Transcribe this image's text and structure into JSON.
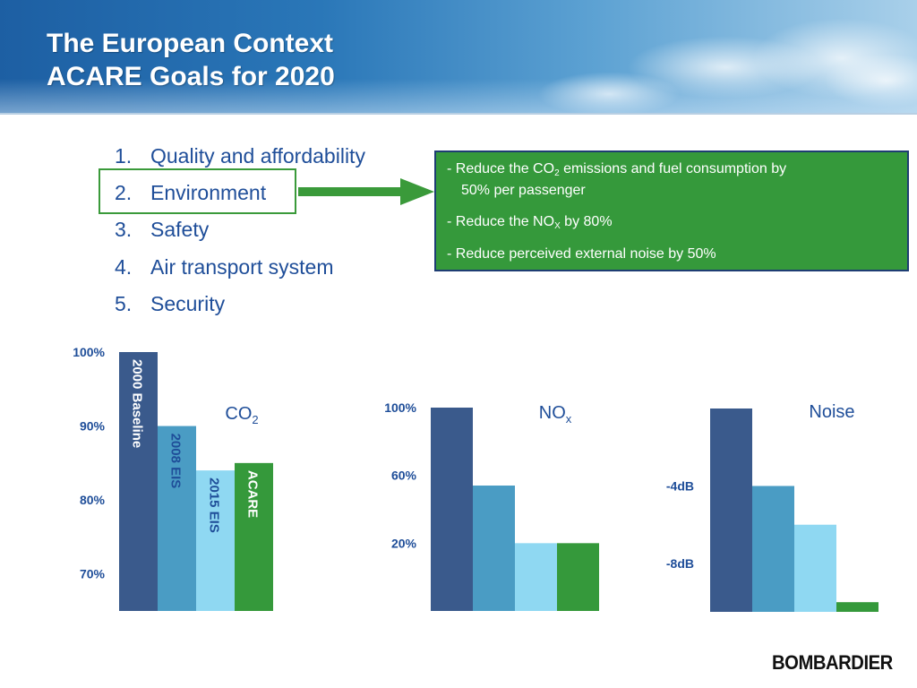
{
  "header": {
    "title_line1": "The European Context",
    "title_line2": "ACARE Goals for 2020"
  },
  "goals": [
    {
      "num": "1.",
      "label": "Quality and affordability"
    },
    {
      "num": "2.",
      "label": "Environment"
    },
    {
      "num": "3.",
      "label": "Safety"
    },
    {
      "num": "4.",
      "label": "Air transport system"
    },
    {
      "num": "5.",
      "label": "Security"
    }
  ],
  "highlighted_goal": "Environment",
  "environment_targets": {
    "co2_line1_prefix": "-  Reduce the CO",
    "co2_sub": "2",
    "co2_line1_suffix": " emissions and fuel consumption by",
    "co2_line2": "50% per passenger",
    "nox_prefix": "-  Reduce the NO",
    "nox_sub": "X",
    "nox_suffix": " by 80%",
    "noise": "-  Reduce perceived external noise by 50%"
  },
  "colors": {
    "baseline": "#3a5a8c",
    "eis_2008": "#4a9cc4",
    "eis_2015": "#8fd8f2",
    "acare": "#35993b",
    "text_blue": "#1f4e99"
  },
  "chart_data": [
    {
      "type": "bar",
      "title": "CO",
      "title_sub": "2",
      "categories": [
        "2000 Baseline",
        "2008 EIS",
        "2015 EIS",
        "ACARE"
      ],
      "values": [
        100,
        90,
        84,
        85
      ],
      "ylim": [
        65,
        100
      ],
      "yticks": [
        100,
        90,
        80,
        70
      ],
      "ytick_labels": [
        "100%",
        "90%",
        "80%",
        "70%"
      ],
      "series_colors": [
        "#3a5a8c",
        "#4a9cc4",
        "#8fd8f2",
        "#35993b"
      ]
    },
    {
      "type": "bar",
      "title": "NO",
      "title_sub": "x",
      "categories": [
        "2000 Baseline",
        "2008 EIS",
        "2015 EIS",
        "ACARE"
      ],
      "values": [
        100,
        54,
        20,
        20
      ],
      "ylim": [
        -20,
        100
      ],
      "yticks": [
        100,
        60,
        20
      ],
      "ytick_labels": [
        "100%",
        "60%",
        "20%"
      ],
      "series_colors": [
        "#3a5a8c",
        "#4a9cc4",
        "#8fd8f2",
        "#35993b"
      ]
    },
    {
      "type": "bar",
      "title": "Noise",
      "categories": [
        "2000 Baseline",
        "2008 EIS",
        "2015 EIS",
        "ACARE"
      ],
      "values": [
        0,
        -4,
        -6,
        -10
      ],
      "ylim": [
        -10.5,
        0
      ],
      "yticks": [
        -4,
        -8
      ],
      "ytick_labels": [
        "-4dB",
        "-8dB"
      ],
      "series_colors": [
        "#3a5a8c",
        "#4a9cc4",
        "#8fd8f2",
        "#35993b"
      ]
    }
  ],
  "logo": "BOMBARDIER"
}
